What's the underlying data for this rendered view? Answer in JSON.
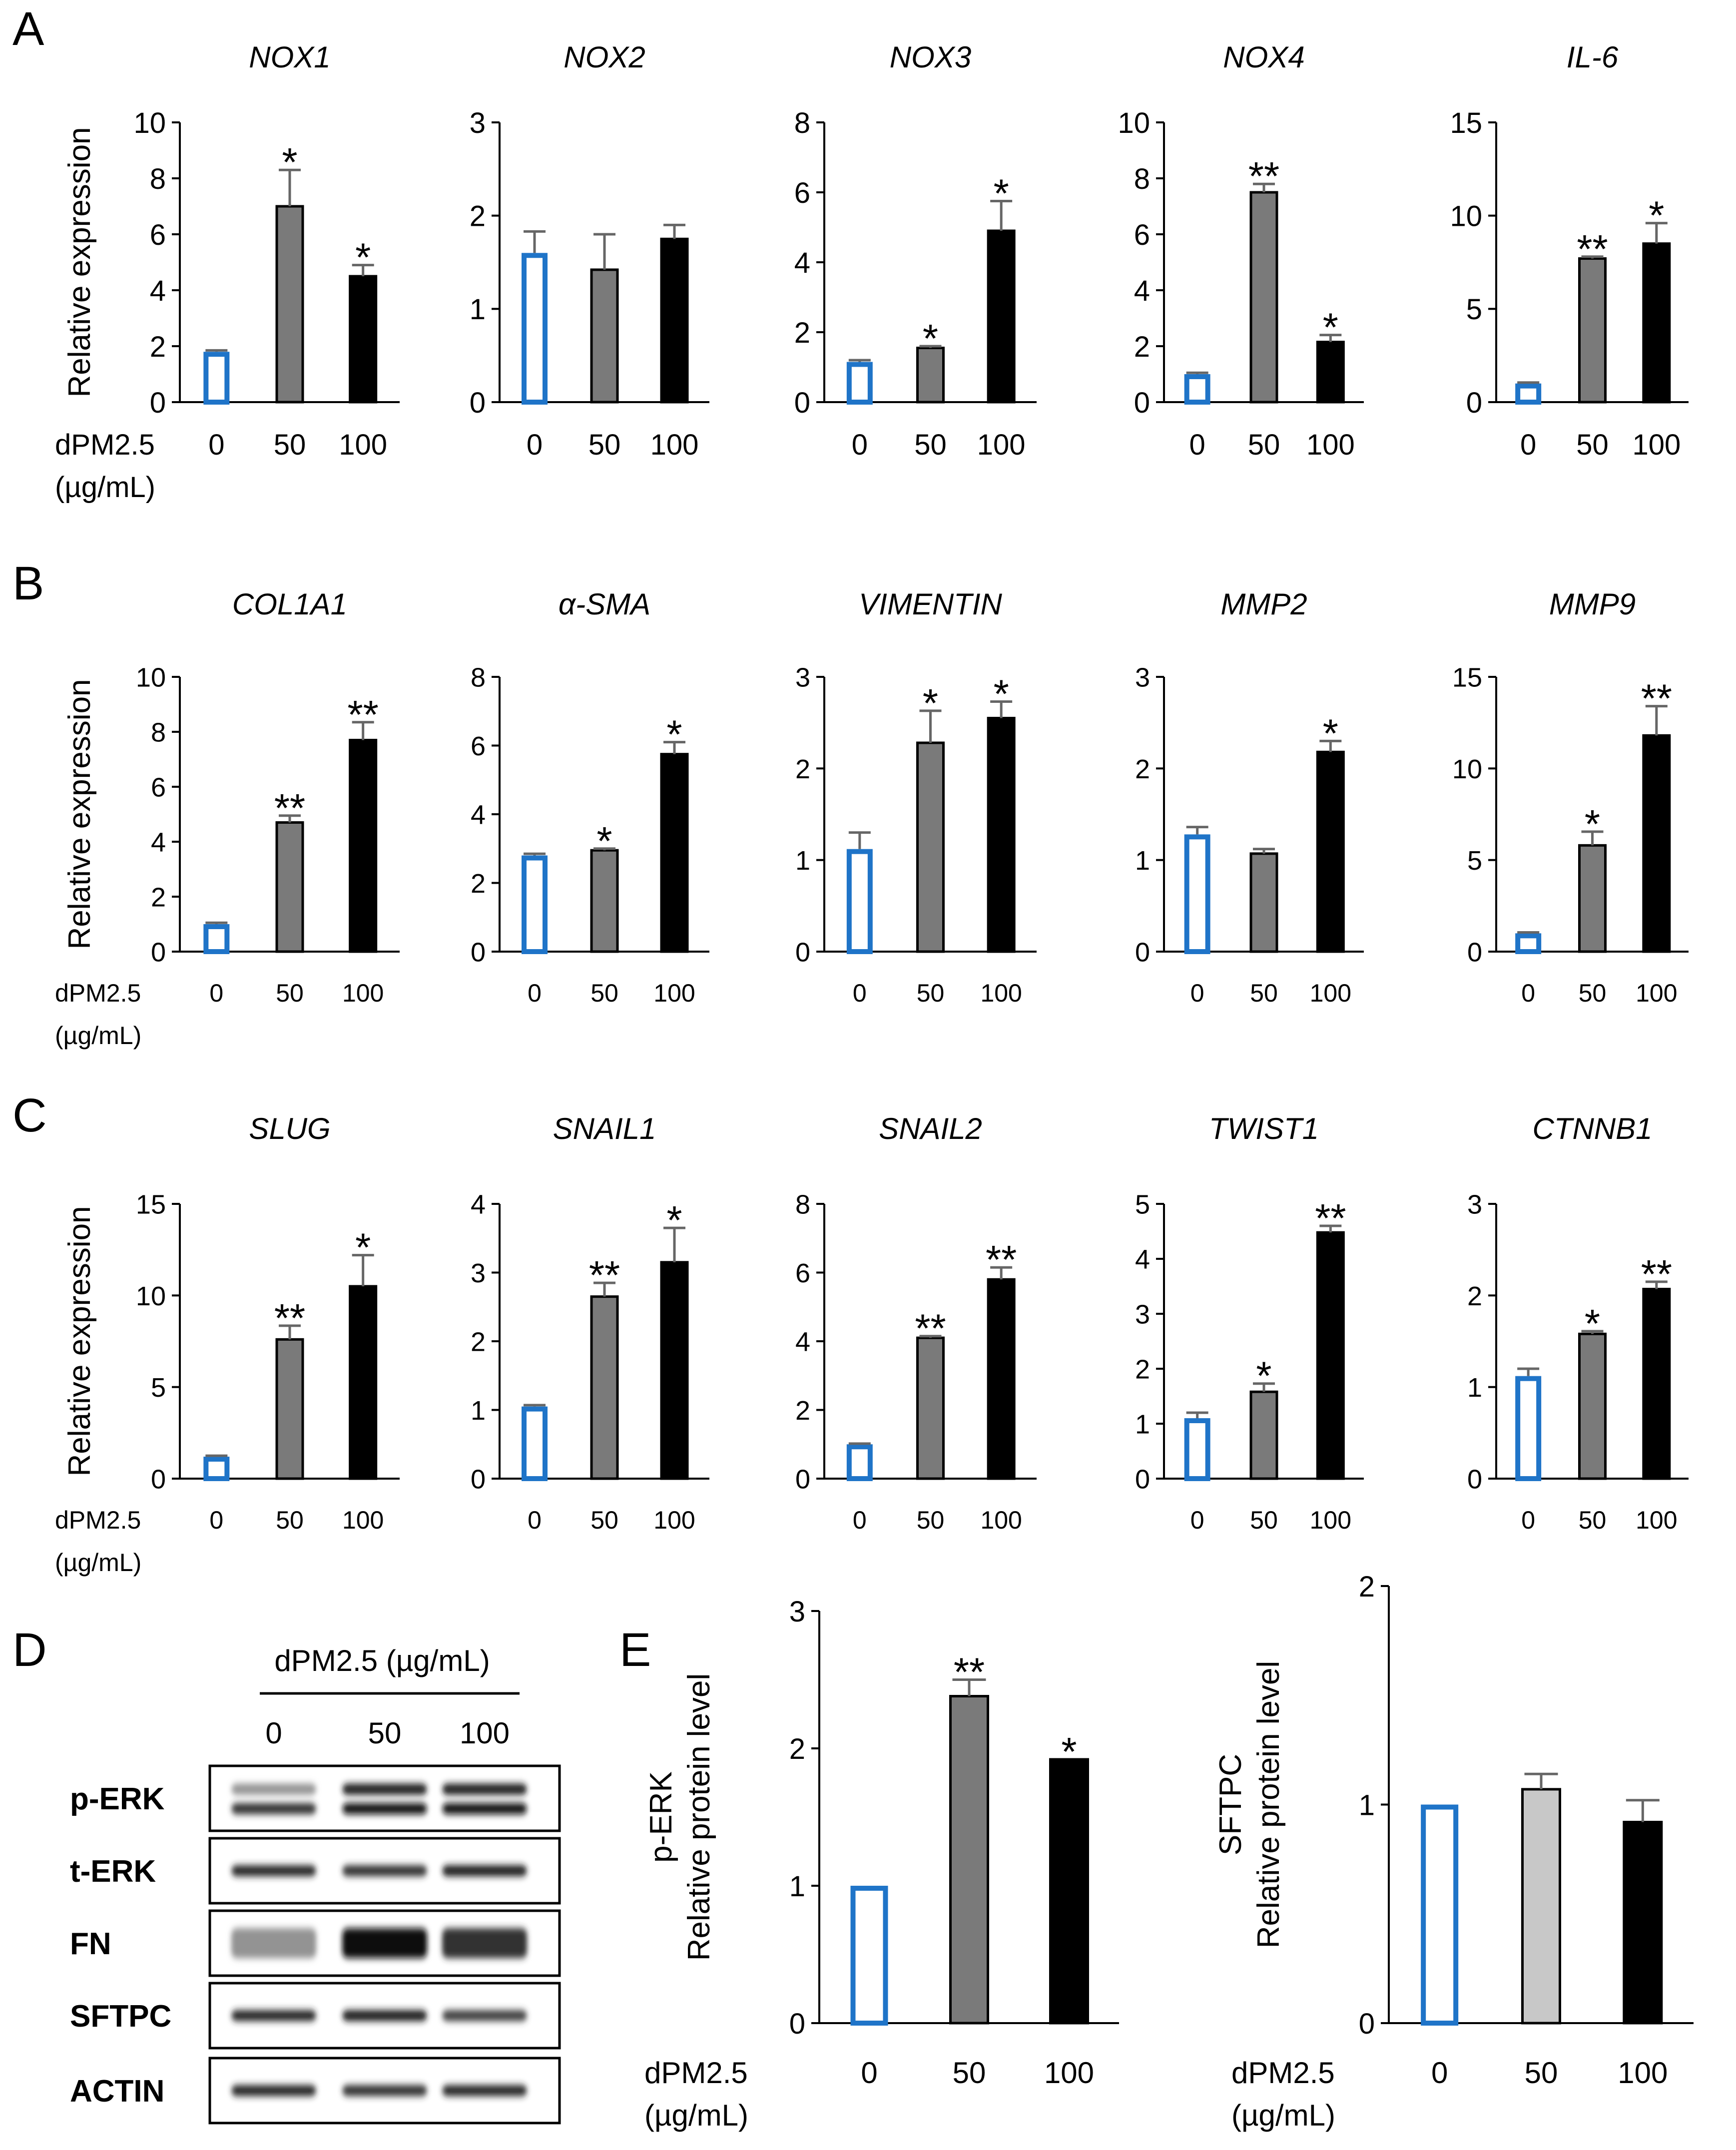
{
  "figure": {
    "panel_letters": [
      "A",
      "B",
      "C",
      "D",
      "E"
    ],
    "x_axis_title": "dPM2.5",
    "x_axis_unit": "(µg/mL)",
    "colors": {
      "control_stroke": "#1f74c8",
      "bar_50": "#7a7a7a",
      "bar_100": "#000000",
      "sftpc_50": "#c8c8c8"
    }
  },
  "chart_data": [
    {
      "id": "A1",
      "type": "bar",
      "title": "NOX1",
      "ylabel": "Relative expression",
      "categories": [
        "0",
        "50",
        "100"
      ],
      "values": [
        1.8,
        7.0,
        4.5
      ],
      "errors": [
        0.05,
        1.3,
        0.4
      ],
      "significance": [
        "",
        "*",
        "*"
      ],
      "ylim": [
        0,
        10
      ],
      "yticks": [
        0,
        2,
        4,
        6,
        8,
        10
      ]
    },
    {
      "id": "A2",
      "type": "bar",
      "title": "NOX2",
      "ylabel": "",
      "categories": [
        "0",
        "50",
        "100"
      ],
      "values": [
        1.6,
        1.42,
        1.75
      ],
      "errors": [
        0.23,
        0.38,
        0.15
      ],
      "significance": [
        "",
        "",
        ""
      ],
      "ylim": [
        0,
        3
      ],
      "yticks": [
        0,
        1,
        2,
        3
      ]
    },
    {
      "id": "A3",
      "type": "bar",
      "title": "NOX3",
      "ylabel": "",
      "categories": [
        "0",
        "50",
        "100"
      ],
      "values": [
        1.15,
        1.55,
        4.9
      ],
      "errors": [
        0.05,
        0.05,
        0.85
      ],
      "significance": [
        "",
        "*",
        "*"
      ],
      "ylim": [
        0,
        8
      ],
      "yticks": [
        0,
        2,
        4,
        6,
        8
      ]
    },
    {
      "id": "A4",
      "type": "bar",
      "title": "NOX4",
      "ylabel": "",
      "categories": [
        "0",
        "50",
        "100"
      ],
      "values": [
        1.0,
        7.5,
        2.15
      ],
      "errors": [
        0.05,
        0.3,
        0.25
      ],
      "significance": [
        "",
        "**",
        "*"
      ],
      "ylim": [
        0,
        10
      ],
      "yticks": [
        0,
        2,
        4,
        6,
        8,
        10
      ]
    },
    {
      "id": "A5",
      "type": "bar",
      "title": "IL-6",
      "ylabel": "",
      "categories": [
        "0",
        "50",
        "100"
      ],
      "values": [
        1.0,
        7.7,
        8.5
      ],
      "errors": [
        0.05,
        0.1,
        1.1
      ],
      "significance": [
        "",
        "**",
        "*"
      ],
      "ylim": [
        0,
        15
      ],
      "yticks": [
        0,
        5,
        10,
        15
      ]
    },
    {
      "id": "B1",
      "type": "bar",
      "title": "COL1A1",
      "ylabel": "Relative expression",
      "categories": [
        "0",
        "50",
        "100"
      ],
      "values": [
        1.0,
        4.7,
        7.7
      ],
      "errors": [
        0.05,
        0.25,
        0.65
      ],
      "significance": [
        "",
        "**",
        "**"
      ],
      "ylim": [
        0,
        10
      ],
      "yticks": [
        0,
        2,
        4,
        6,
        8,
        10
      ]
    },
    {
      "id": "B2",
      "type": "bar",
      "title": "α-SMA",
      "ylabel": "",
      "categories": [
        "0",
        "50",
        "100"
      ],
      "values": [
        2.8,
        2.95,
        5.75
      ],
      "errors": [
        0.05,
        0.05,
        0.35
      ],
      "significance": [
        "",
        "*",
        "*"
      ],
      "ylim": [
        0,
        8
      ],
      "yticks": [
        0,
        2,
        4,
        6,
        8
      ]
    },
    {
      "id": "B3",
      "type": "bar",
      "title": "VIMENTIN",
      "ylabel": "",
      "categories": [
        "0",
        "50",
        "100"
      ],
      "values": [
        1.12,
        2.28,
        2.55
      ],
      "errors": [
        0.18,
        0.35,
        0.18
      ],
      "significance": [
        "",
        "*",
        "*"
      ],
      "ylim": [
        0,
        3
      ],
      "yticks": [
        0,
        1,
        2,
        3
      ]
    },
    {
      "id": "B4",
      "type": "bar",
      "title": "MMP2",
      "ylabel": "",
      "categories": [
        "0",
        "50",
        "100"
      ],
      "values": [
        1.28,
        1.07,
        2.18
      ],
      "errors": [
        0.08,
        0.05,
        0.12
      ],
      "significance": [
        "",
        "",
        "*"
      ],
      "ylim": [
        0,
        3
      ],
      "yticks": [
        0,
        1,
        2,
        3
      ]
    },
    {
      "id": "B5",
      "type": "bar",
      "title": "MMP9",
      "ylabel": "",
      "categories": [
        "0",
        "50",
        "100"
      ],
      "values": [
        1.0,
        5.8,
        11.8
      ],
      "errors": [
        0.05,
        0.75,
        1.6
      ],
      "significance": [
        "",
        "*",
        "**"
      ],
      "ylim": [
        0,
        15
      ],
      "yticks": [
        0,
        5,
        10,
        15
      ]
    },
    {
      "id": "C1",
      "type": "bar",
      "title": "SLUG",
      "ylabel": "Relative expression",
      "categories": [
        "0",
        "50",
        "100"
      ],
      "values": [
        1.2,
        7.6,
        10.5
      ],
      "errors": [
        0.05,
        0.75,
        1.7
      ],
      "significance": [
        "",
        "**",
        "*"
      ],
      "ylim": [
        0,
        15
      ],
      "yticks": [
        0,
        5,
        10,
        15
      ]
    },
    {
      "id": "C2",
      "type": "bar",
      "title": "SNAIL1",
      "ylabel": "",
      "categories": [
        "0",
        "50",
        "100"
      ],
      "values": [
        1.05,
        2.65,
        3.15
      ],
      "errors": [
        0.02,
        0.2,
        0.5
      ],
      "significance": [
        "",
        "**",
        "*"
      ],
      "ylim": [
        0,
        4
      ],
      "yticks": [
        0,
        1,
        2,
        3,
        4
      ]
    },
    {
      "id": "C3",
      "type": "bar",
      "title": "SNAIL2",
      "ylabel": "",
      "categories": [
        "0",
        "50",
        "100"
      ],
      "values": [
        1.0,
        4.1,
        5.8
      ],
      "errors": [
        0.02,
        0.05,
        0.35
      ],
      "significance": [
        "",
        "**",
        "**"
      ],
      "ylim": [
        0,
        8
      ],
      "yticks": [
        0,
        2,
        4,
        6,
        8
      ]
    },
    {
      "id": "C4",
      "type": "bar",
      "title": "TWIST1",
      "ylabel": "",
      "categories": [
        "0",
        "50",
        "100"
      ],
      "values": [
        1.1,
        1.58,
        4.48
      ],
      "errors": [
        0.1,
        0.15,
        0.12
      ],
      "significance": [
        "",
        "*",
        "**"
      ],
      "ylim": [
        0,
        5
      ],
      "yticks": [
        0,
        1,
        2,
        3,
        4,
        5
      ]
    },
    {
      "id": "C5",
      "type": "bar",
      "title": "CTNNB1",
      "ylabel": "",
      "categories": [
        "0",
        "50",
        "100"
      ],
      "values": [
        1.12,
        1.58,
        2.07
      ],
      "errors": [
        0.08,
        0.03,
        0.08
      ],
      "significance": [
        "",
        "*",
        "**"
      ],
      "ylim": [
        0,
        3
      ],
      "yticks": [
        0,
        1,
        2,
        3
      ]
    },
    {
      "id": "E1",
      "type": "bar",
      "title": "",
      "ylabel": "Relative protein level",
      "ylabel_prefix": "p-ERK",
      "categories": [
        "0",
        "50",
        "100"
      ],
      "values": [
        1.0,
        2.38,
        1.92
      ],
      "errors": [
        0.0,
        0.12,
        0.0
      ],
      "significance": [
        "",
        "**",
        "*"
      ],
      "ylim": [
        0,
        3
      ],
      "yticks": [
        0,
        1,
        2,
        3
      ]
    },
    {
      "id": "E2",
      "type": "bar",
      "title": "",
      "ylabel": "Relative protein level",
      "ylabel_prefix": "SFTPC",
      "categories": [
        "0",
        "50",
        "100"
      ],
      "values": [
        1.0,
        1.07,
        0.92
      ],
      "errors": [
        0.0,
        0.07,
        0.1
      ],
      "significance": [
        "",
        "",
        ""
      ],
      "ylim": [
        0,
        2
      ],
      "yticks": [
        0,
        1,
        2
      ]
    }
  ],
  "western_blot": {
    "header": "dPM2.5 (µg/mL)",
    "lanes": [
      "0",
      "50",
      "100"
    ],
    "rows": [
      {
        "label": "p-ERK",
        "bands": [
          [
            0.45,
            0.85
          ],
          [
            0.95,
            1.0
          ],
          [
            0.95,
            1.0
          ]
        ]
      },
      {
        "label": "t-ERK",
        "bands": [
          [
            0.9
          ],
          [
            0.85
          ],
          [
            0.95
          ]
        ]
      },
      {
        "label": "FN",
        "bands": [
          [
            0.45
          ],
          [
            1.0
          ],
          [
            0.85
          ]
        ]
      },
      {
        "label": "SFTPC",
        "bands": [
          [
            0.9
          ],
          [
            0.95
          ],
          [
            0.8
          ]
        ]
      },
      {
        "label": "ACTIN",
        "bands": [
          [
            0.9
          ],
          [
            0.85
          ],
          [
            0.9
          ]
        ]
      }
    ]
  }
}
